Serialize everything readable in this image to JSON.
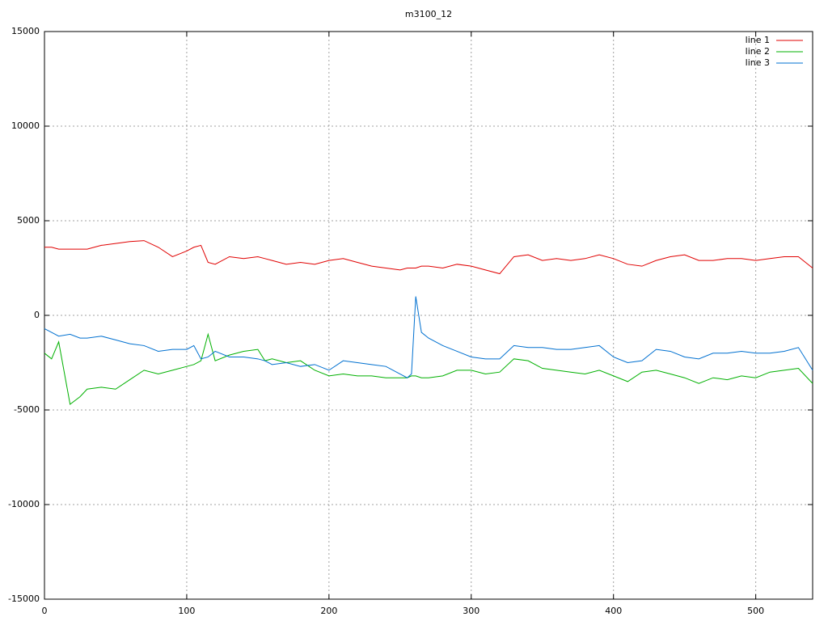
{
  "chart_data": {
    "type": "line",
    "title": "m3100_12",
    "x": [
      0,
      5,
      10,
      18,
      25,
      30,
      40,
      50,
      60,
      70,
      80,
      90,
      100,
      105,
      110,
      115,
      120,
      130,
      140,
      150,
      155,
      160,
      170,
      180,
      190,
      200,
      210,
      220,
      230,
      240,
      250,
      255,
      258,
      261,
      265,
      270,
      280,
      290,
      300,
      310,
      320,
      330,
      340,
      350,
      360,
      370,
      380,
      390,
      400,
      410,
      420,
      430,
      440,
      450,
      460,
      470,
      480,
      490,
      500,
      510,
      520,
      530,
      540
    ],
    "series": [
      {
        "name": "line 1",
        "color": "#e00000",
        "values": [
          3600,
          3600,
          3500,
          3500,
          3500,
          3500,
          3700,
          3800,
          3900,
          3950,
          3600,
          3100,
          3400,
          3600,
          3700,
          2800,
          2700,
          3100,
          3000,
          3100,
          3000,
          2900,
          2700,
          2800,
          2700,
          2900,
          3000,
          2800,
          2600,
          2500,
          2400,
          2500,
          2500,
          2500,
          2600,
          2600,
          2500,
          2700,
          2600,
          2400,
          2200,
          3100,
          3200,
          2900,
          3000,
          2900,
          3000,
          3200,
          3000,
          2700,
          2600,
          2900,
          3100,
          3200,
          2900,
          2900,
          3000,
          3000,
          2900,
          3000,
          3100,
          3100,
          2500
        ]
      },
      {
        "name": "line 2",
        "color": "#00b000",
        "values": [
          -2000,
          -2300,
          -1400,
          -4700,
          -4300,
          -3900,
          -3800,
          -3900,
          -3400,
          -2900,
          -3100,
          -2900,
          -2700,
          -2600,
          -2400,
          -1000,
          -2400,
          -2100,
          -1900,
          -1800,
          -2400,
          -2300,
          -2500,
          -2400,
          -2900,
          -3200,
          -3100,
          -3200,
          -3200,
          -3300,
          -3300,
          -3300,
          -3200,
          -3200,
          -3300,
          -3300,
          -3200,
          -2900,
          -2900,
          -3100,
          -3000,
          -2300,
          -2400,
          -2800,
          -2900,
          -3000,
          -3100,
          -2900,
          -3200,
          -3500,
          -3000,
          -2900,
          -3100,
          -3300,
          -3600,
          -3300,
          -3400,
          -3200,
          -3300,
          -3000,
          -2900,
          -2800,
          -3600
        ]
      },
      {
        "name": "line 3",
        "color": "#0070d0",
        "values": [
          -700,
          -900,
          -1100,
          -1000,
          -1200,
          -1200,
          -1100,
          -1300,
          -1500,
          -1600,
          -1900,
          -1800,
          -1800,
          -1600,
          -2300,
          -2200,
          -1900,
          -2200,
          -2200,
          -2300,
          -2400,
          -2600,
          -2500,
          -2700,
          -2600,
          -2900,
          -2400,
          -2500,
          -2600,
          -2700,
          -3100,
          -3300,
          -3100,
          1000,
          -900,
          -1200,
          -1600,
          -1900,
          -2200,
          -2300,
          -2300,
          -1600,
          -1700,
          -1700,
          -1800,
          -1800,
          -1700,
          -1600,
          -2200,
          -2500,
          -2400,
          -1800,
          -1900,
          -2200,
          -2300,
          -2000,
          -2000,
          -1900,
          -2000,
          -2000,
          -1900,
          -1700,
          -2900
        ]
      }
    ],
    "xlim": [
      0,
      540
    ],
    "xticks": [
      0,
      100,
      200,
      300,
      400,
      500
    ],
    "ylim": [
      -15000,
      15000
    ],
    "yticks": [
      -15000,
      -10000,
      -5000,
      0,
      5000,
      10000,
      15000
    ],
    "grid": true,
    "legend": "top-right"
  }
}
